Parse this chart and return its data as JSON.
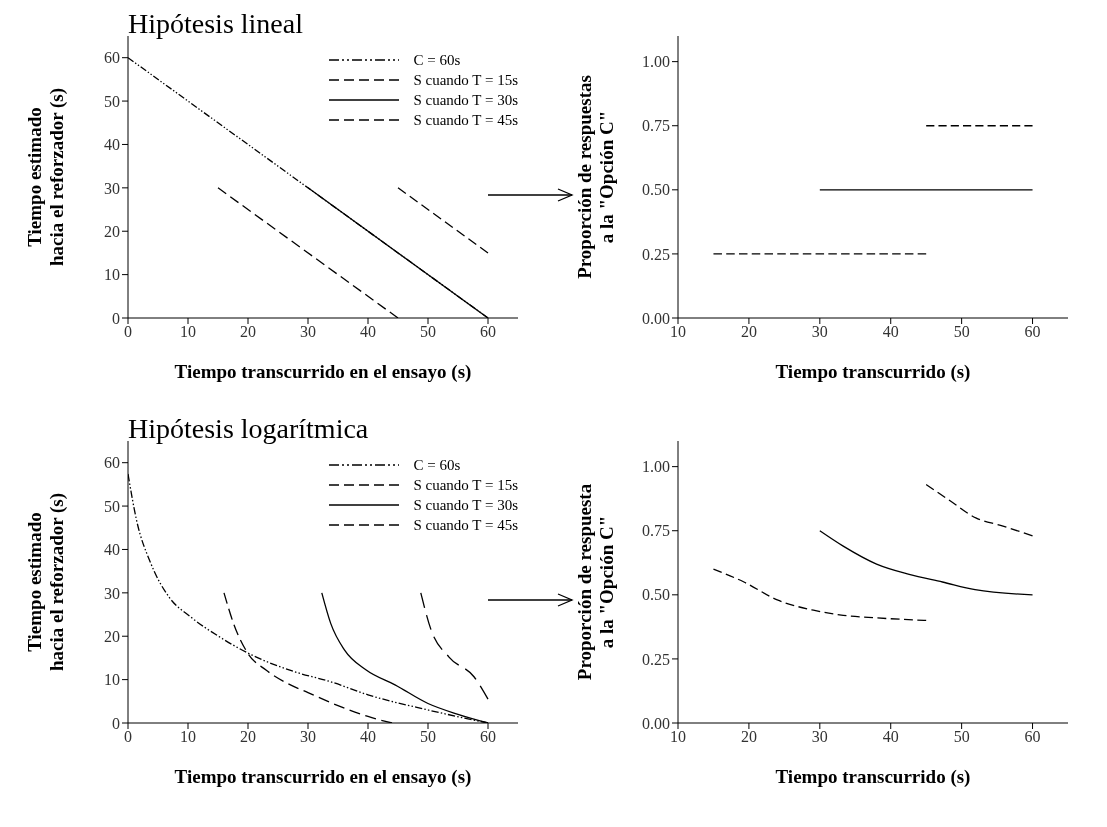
{
  "chart_data": [
    {
      "type": "line",
      "title": "Hipótesis lineal",
      "xlabel": "Tiempo transcurrido en el ensayo (s)",
      "ylabel": "Tiempo estimado\nhacia el reforzador (s)",
      "xlim": [
        0,
        65
      ],
      "xticks": [
        0,
        10,
        20,
        30,
        40,
        50,
        60
      ],
      "ylim": [
        0,
        65
      ],
      "yticks": [
        0,
        10,
        20,
        30,
        40,
        50,
        60
      ],
      "legend": "top right",
      "marker": "none",
      "series": [
        {
          "name": "C = 60s",
          "color": "#000000",
          "line_style": "dotted",
          "x": [
            0,
            60
          ],
          "values": [
            60,
            0
          ]
        },
        {
          "name": "S cuando T = 15s",
          "color": "#000000",
          "line_style": "dashed",
          "x": [
            15,
            45
          ],
          "values": [
            30,
            0
          ]
        },
        {
          "name": "S cuando T = 30s",
          "color": "#000000",
          "line_style": "solid",
          "x": [
            30,
            60
          ],
          "values": [
            30,
            0
          ]
        },
        {
          "name": "S cuando T = 45s",
          "color": "#000000",
          "line_style": "dashed",
          "x": [
            45,
            60
          ],
          "values": [
            30,
            15
          ]
        }
      ]
    },
    {
      "type": "line",
      "xlabel": "Tiempo transcurrido (s)",
      "ylabel": "Proporción de respuestas\na la \"Opción C\"",
      "xlim": [
        10,
        65
      ],
      "xticks": [
        10,
        20,
        30,
        40,
        50,
        60
      ],
      "ylim": [
        0,
        1.1
      ],
      "yticks": [
        {
          "value": 0,
          "label": "0.00"
        },
        {
          "value": 0.25,
          "label": "0.25"
        },
        {
          "value": 0.5,
          "label": "0.50"
        },
        {
          "value": 0.75,
          "label": "0.75"
        },
        {
          "value": 1,
          "label": "1.00"
        }
      ],
      "legend": false,
      "marker": "none",
      "series": [
        {
          "color": "#000000",
          "line_style": "dashed",
          "x": [
            15,
            45
          ],
          "values": [
            0.25,
            0.25
          ]
        },
        {
          "color": "#000000",
          "line_style": "solid",
          "x": [
            30,
            60
          ],
          "values": [
            0.5,
            0.5
          ]
        },
        {
          "color": "#000000",
          "line_style": "dashed",
          "x": [
            45,
            60
          ],
          "values": [
            0.75,
            0.75
          ]
        }
      ]
    },
    {
      "type": "line",
      "title": "Hipótesis logarítmica",
      "xlabel": "Tiempo transcurrido en el ensayo (s)",
      "ylabel": "Tiempo estimado\nhacia el reforzador (s)",
      "xlim": [
        0,
        65
      ],
      "xticks": [
        0,
        10,
        20,
        30,
        40,
        50,
        60
      ],
      "ylim": [
        0,
        65
      ],
      "yticks": [
        0,
        10,
        20,
        30,
        40,
        50,
        60
      ],
      "legend": "top right",
      "marker": "none",
      "series": [
        {
          "name": "C = 60s",
          "color": "#000000",
          "line_style": "dotted",
          "x": [
            0,
            1.4,
            3.8,
            6.8,
            10.4,
            15.2,
            20.6,
            27.8,
            33.8,
            40,
            50,
            60
          ],
          "values": [
            57.4,
            46.9,
            36.8,
            29.1,
            24.5,
            19.9,
            15.7,
            11.8,
            9.5,
            6.5,
            3,
            0
          ]
        },
        {
          "name": "S cuando T = 15s",
          "color": "#000000",
          "line_style": "dashed",
          "x": [
            16,
            17.6,
            20,
            23,
            26.6,
            30,
            35,
            40,
            44
          ],
          "values": [
            30,
            22.9,
            16,
            12.2,
            9.1,
            7,
            4,
            1.5,
            0
          ]
        },
        {
          "name": "S cuando T = 30s",
          "color": "#000000",
          "line_style": "solid",
          "x": [
            32.3,
            33.8,
            36.1,
            39.7,
            44.5,
            50,
            55,
            60
          ],
          "values": [
            30,
            22.9,
            16.8,
            12.2,
            8.8,
            4.5,
            2,
            0
          ]
        },
        {
          "name": "S cuando T = 45s",
          "color": "#000000",
          "line_style": "dashed",
          "x": [
            48.8,
            50.5,
            53.5,
            57.7,
            60
          ],
          "values": [
            30,
            21.5,
            15.2,
            10.6,
            5.5
          ]
        }
      ]
    },
    {
      "type": "line",
      "xlabel": "Tiempo transcurrido (s)",
      "ylabel": "Proporción de respuesta\na la \"Opción C\"",
      "xlim": [
        10,
        65
      ],
      "xticks": [
        10,
        20,
        30,
        40,
        50,
        60
      ],
      "ylim": [
        0,
        1.1
      ],
      "yticks": [
        {
          "value": 0,
          "label": "0.00"
        },
        {
          "value": 0.25,
          "label": "0.25"
        },
        {
          "value": 0.5,
          "label": "0.50"
        },
        {
          "value": 0.75,
          "label": "0.75"
        },
        {
          "value": 1,
          "label": "1.00"
        }
      ],
      "legend": false,
      "marker": "none",
      "series": [
        {
          "color": "#000000",
          "line_style": "dashed",
          "x": [
            15,
            19.3,
            24,
            29.1,
            33.3,
            38,
            45
          ],
          "values": [
            0.6,
            0.55,
            0.48,
            0.44,
            0.42,
            0.41,
            0.4
          ]
        },
        {
          "color": "#000000",
          "line_style": "solid",
          "x": [
            30,
            33.3,
            38,
            42.6,
            47.3,
            51.9,
            60
          ],
          "values": [
            0.75,
            0.69,
            0.62,
            0.58,
            0.55,
            0.52,
            0.5
          ]
        },
        {
          "color": "#000000",
          "line_style": "dashed",
          "x": [
            45,
            48.2,
            52,
            55.6,
            60
          ],
          "values": [
            0.93,
            0.87,
            0.8,
            0.77,
            0.73
          ]
        }
      ]
    }
  ]
}
